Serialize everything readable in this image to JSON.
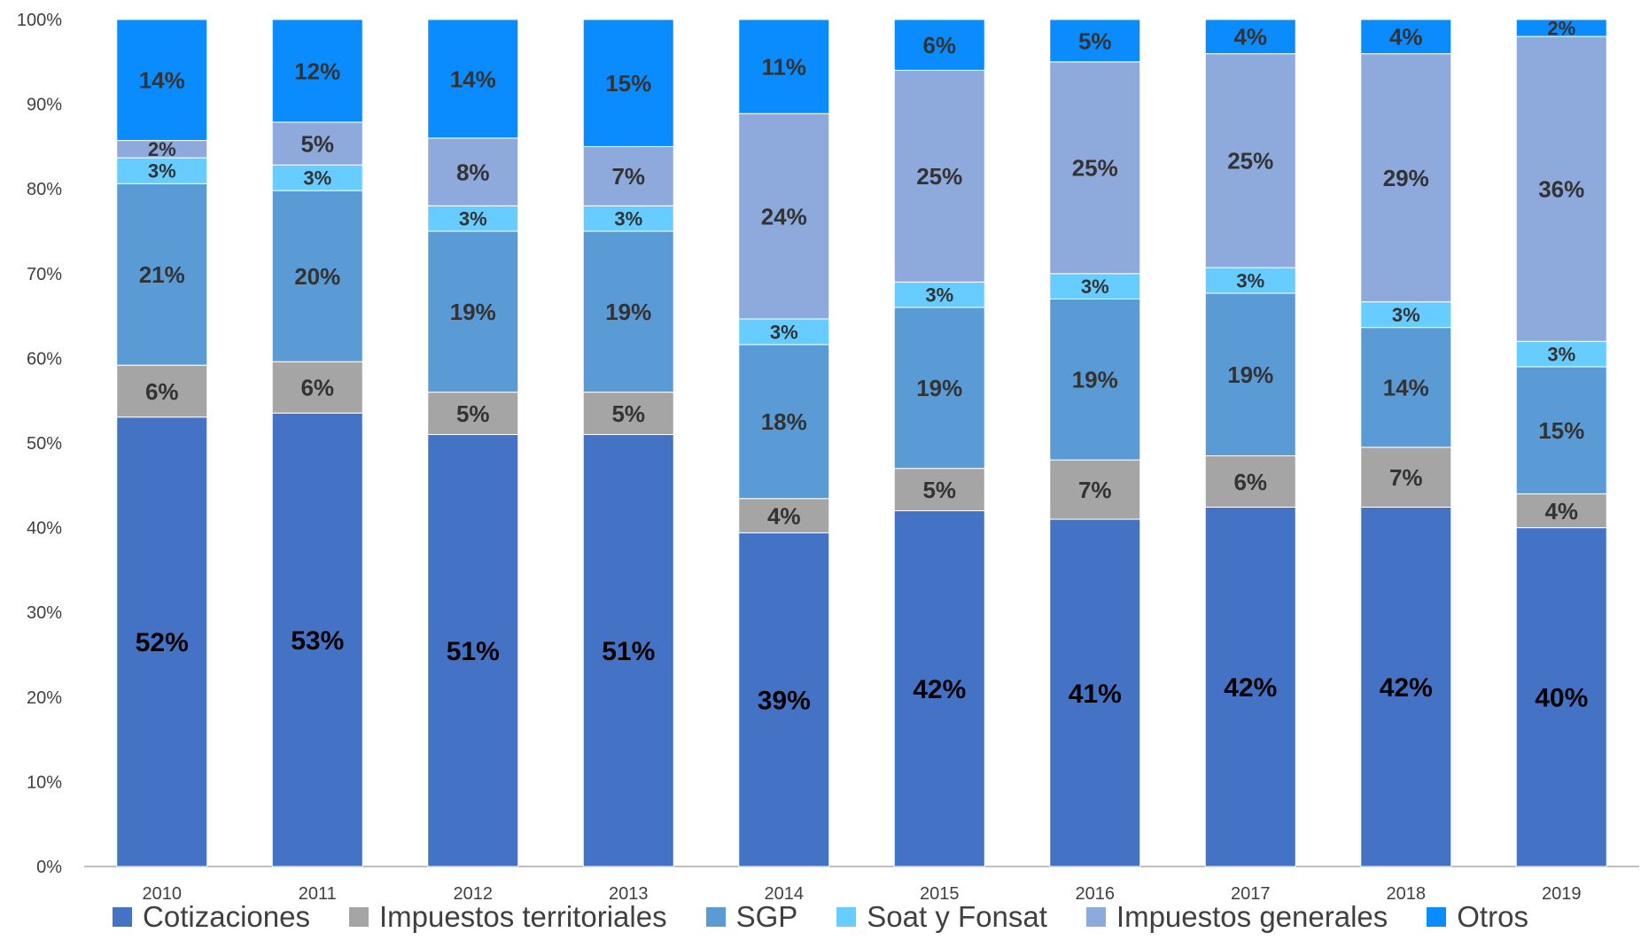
{
  "chart_data": {
    "type": "bar",
    "stacked": "percent",
    "title": "",
    "xlabel": "",
    "ylabel": "",
    "ylim": [
      0,
      100
    ],
    "y_ticks": [
      "0%",
      "10%",
      "20%",
      "30%",
      "40%",
      "50%",
      "60%",
      "70%",
      "80%",
      "90%",
      "100%"
    ],
    "categories": [
      "2010",
      "2011",
      "2012",
      "2013",
      "2014",
      "2015",
      "2016",
      "2017",
      "2018",
      "2019"
    ],
    "legend_position": "bottom",
    "grid": false,
    "series": [
      {
        "name": "Cotizaciones",
        "color": "#4472C4",
        "values": [
          52,
          53,
          51,
          51,
          39,
          42,
          41,
          42,
          42,
          40
        ],
        "labels": [
          "52%",
          "53%",
          "51%",
          "51%",
          "39%",
          "42%",
          "41%",
          "42%",
          "42%",
          "40%"
        ]
      },
      {
        "name": "Impuestos territoriales",
        "color": "#A5A5A5",
        "values": [
          6,
          6,
          5,
          5,
          4,
          5,
          7,
          6,
          7,
          4
        ],
        "labels": [
          "6%",
          "6%",
          "5%",
          "5%",
          "4%",
          "5%",
          "7%",
          "6%",
          "7%",
          "4%"
        ]
      },
      {
        "name": "SGP",
        "color": "#5B9BD5",
        "values": [
          21,
          20,
          19,
          19,
          18,
          19,
          19,
          19,
          14,
          15
        ],
        "labels": [
          "21%",
          "20%",
          "19%",
          "19%",
          "18%",
          "19%",
          "19%",
          "19%",
          "14%",
          "15%"
        ]
      },
      {
        "name": "Soat y Fonsat",
        "color": "#67CCFF",
        "values": [
          3,
          3,
          3,
          3,
          3,
          3,
          3,
          3,
          3,
          3
        ],
        "labels": [
          "3%",
          "3%",
          "3%",
          "3%",
          "3%",
          "3%",
          "3%",
          "3%",
          "3%",
          "3%"
        ]
      },
      {
        "name": "Impuestos generales",
        "color": "#8EA9DB",
        "values": [
          2,
          5,
          8,
          7,
          24,
          25,
          25,
          25,
          29,
          36
        ],
        "labels": [
          "2%",
          "5%",
          "8%",
          "7%",
          "24%",
          "25%",
          "25%",
          "25%",
          "29%",
          "36%"
        ]
      },
      {
        "name": "Otros",
        "color": "#0A8CFF",
        "values": [
          14,
          12,
          14,
          15,
          11,
          6,
          5,
          4,
          4,
          2
        ],
        "labels": [
          "14%",
          "12%",
          "14%",
          "15%",
          "11%",
          "6%",
          "5%",
          "4%",
          "4%",
          "2%"
        ]
      }
    ]
  }
}
